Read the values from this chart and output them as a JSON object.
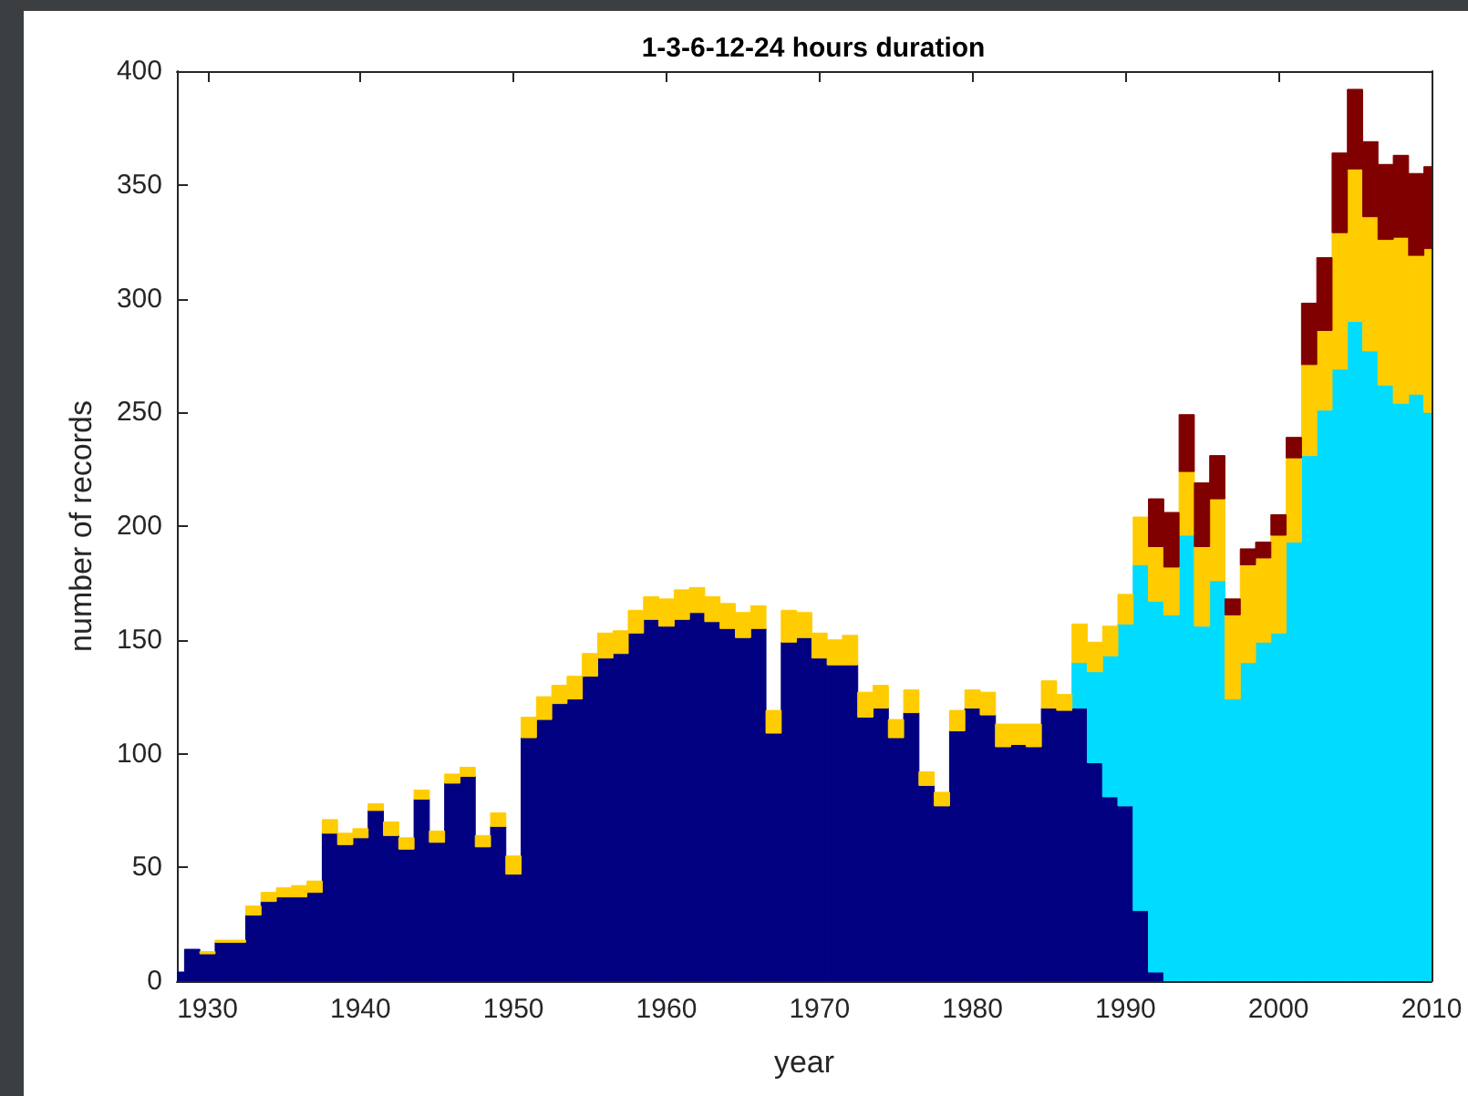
{
  "chart_data": {
    "type": "bar",
    "stacked": true,
    "title": "1-3-6-12-24 hours duration",
    "xlabel": "year",
    "ylabel": "number of records",
    "x": [
      1928,
      1929,
      1930,
      1931,
      1932,
      1933,
      1934,
      1935,
      1936,
      1937,
      1938,
      1939,
      1940,
      1941,
      1942,
      1943,
      1944,
      1945,
      1946,
      1947,
      1948,
      1949,
      1950,
      1951,
      1952,
      1953,
      1954,
      1955,
      1956,
      1957,
      1958,
      1959,
      1960,
      1961,
      1962,
      1963,
      1964,
      1965,
      1966,
      1967,
      1968,
      1969,
      1970,
      1971,
      1972,
      1973,
      1974,
      1975,
      1976,
      1977,
      1978,
      1979,
      1980,
      1981,
      1982,
      1983,
      1984,
      1985,
      1986,
      1987,
      1988,
      1989,
      1990,
      1991,
      1992,
      1993,
      1994,
      1995,
      1996,
      1997,
      1998,
      1999,
      2000,
      2001,
      2002,
      2003,
      2004,
      2005,
      2006,
      2007,
      2008,
      2009,
      2010
    ],
    "series": [
      {
        "color": "#000080",
        "values": [
          4,
          14,
          12,
          17,
          17,
          29,
          35,
          37,
          37,
          39,
          65,
          60,
          63,
          75,
          64,
          58,
          80,
          61,
          87,
          90,
          59,
          68,
          47,
          107,
          115,
          122,
          124,
          134,
          142,
          144,
          153,
          159,
          156,
          159,
          162,
          158,
          155,
          151,
          155,
          109,
          149,
          151,
          142,
          139,
          139,
          116,
          120,
          107,
          118,
          86,
          77,
          110,
          120,
          117,
          103,
          104,
          103,
          120,
          119,
          120,
          96,
          81,
          77,
          31,
          4,
          null,
          null,
          null,
          null,
          null,
          null,
          null,
          null,
          null,
          null,
          null,
          null,
          null,
          null,
          null,
          null,
          null,
          null
        ]
      },
      {
        "color": "#00dcff",
        "values": [
          null,
          null,
          null,
          null,
          null,
          null,
          null,
          null,
          null,
          null,
          null,
          null,
          null,
          null,
          null,
          null,
          null,
          null,
          null,
          null,
          null,
          null,
          null,
          null,
          null,
          null,
          null,
          null,
          null,
          null,
          null,
          null,
          null,
          null,
          null,
          null,
          null,
          null,
          null,
          null,
          null,
          null,
          null,
          null,
          null,
          null,
          null,
          null,
          null,
          null,
          null,
          null,
          null,
          null,
          null,
          null,
          null,
          null,
          null,
          20,
          40,
          62,
          80,
          152,
          163,
          161,
          196,
          156,
          176,
          124,
          140,
          149,
          153,
          193,
          231,
          251,
          269,
          290,
          277,
          262,
          254,
          258,
          250
        ]
      },
      {
        "color": "#ffcc00",
        "values": [
          null,
          null,
          1,
          1,
          1,
          4,
          4,
          4,
          5,
          5,
          6,
          5,
          4,
          3,
          6,
          5,
          4,
          5,
          4,
          4,
          5,
          6,
          8,
          9,
          10,
          8,
          10,
          10,
          11,
          10,
          10,
          10,
          12,
          13,
          11,
          11,
          11,
          11,
          10,
          10,
          14,
          11,
          11,
          11,
          13,
          11,
          10,
          8,
          10,
          6,
          6,
          9,
          8,
          10,
          10,
          9,
          10,
          12,
          7,
          17,
          13,
          13,
          13,
          21,
          24,
          21,
          28,
          35,
          36,
          37,
          43,
          37,
          43,
          37,
          40,
          35,
          60,
          67,
          59,
          64,
          73,
          61,
          72
        ]
      },
      {
        "color": "#800000",
        "values": [
          null,
          null,
          null,
          null,
          null,
          null,
          null,
          null,
          null,
          null,
          null,
          null,
          null,
          null,
          null,
          null,
          null,
          null,
          null,
          null,
          null,
          null,
          null,
          null,
          null,
          null,
          null,
          null,
          null,
          null,
          null,
          null,
          null,
          null,
          null,
          null,
          null,
          null,
          null,
          null,
          null,
          null,
          null,
          null,
          null,
          null,
          null,
          null,
          null,
          null,
          null,
          null,
          null,
          null,
          null,
          null,
          null,
          null,
          null,
          null,
          null,
          null,
          null,
          null,
          21,
          24,
          25,
          28,
          19,
          7,
          7,
          7,
          9,
          9,
          27,
          32,
          35,
          35,
          33,
          33,
          36,
          36,
          36
        ]
      }
    ],
    "xlim": [
      1928,
      2010
    ],
    "xticks": [
      1930,
      1940,
      1950,
      1960,
      1970,
      1980,
      1990,
      2000,
      2010
    ],
    "ylim": [
      0,
      400
    ],
    "yticks": [
      0,
      50,
      100,
      150,
      200,
      250,
      300,
      350,
      400
    ]
  }
}
